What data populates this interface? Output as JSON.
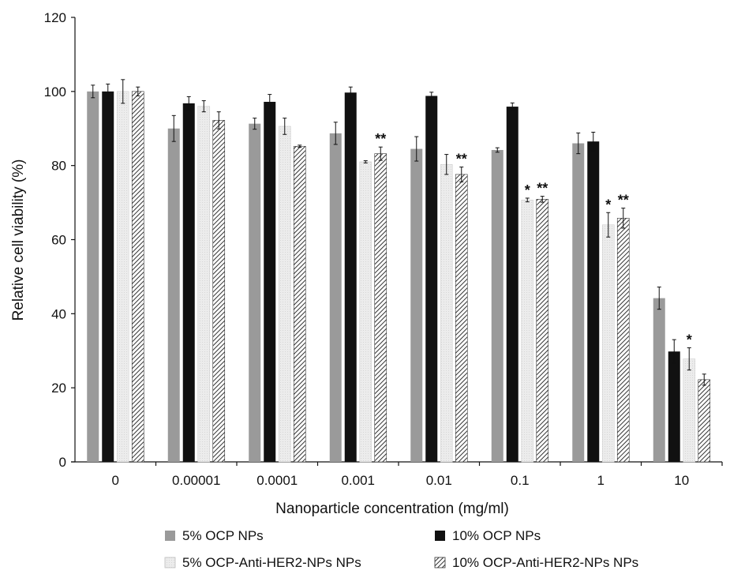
{
  "chart_data": {
    "type": "bar",
    "xlabel": "Nanoparticle concentration (mg/ml)",
    "ylabel": "Relative cell viability (%)",
    "ylim": [
      0,
      120
    ],
    "yticks": [
      "0",
      "20",
      "40",
      "60",
      "80",
      "100",
      "120"
    ],
    "categories": [
      "0",
      "0.00001",
      "0.0001",
      "0.001",
      "0.01",
      "0.1",
      "1",
      "10"
    ],
    "legend_position": "bottom",
    "series": [
      {
        "name": "5% OCP NPs",
        "color": "#9a9a9a",
        "pattern": "solid",
        "values": [
          100,
          90,
          91.3,
          88.7,
          84.5,
          84.2,
          86,
          44.2
        ],
        "errors": [
          1.7,
          3.5,
          1.5,
          3,
          3.3,
          0.6,
          2.8,
          3
        ],
        "significance": [
          "",
          "",
          "",
          "",
          "",
          "",
          "",
          ""
        ]
      },
      {
        "name": "10% OCP NPs",
        "color": "#111111",
        "pattern": "solid",
        "values": [
          100,
          96.8,
          97.2,
          99.7,
          98.8,
          95.9,
          86.5,
          29.8
        ],
        "errors": [
          2,
          1.8,
          2,
          1.5,
          1,
          1,
          2.5,
          3.2
        ],
        "significance": [
          "",
          "",
          "",
          "",
          "",
          "",
          "",
          ""
        ]
      },
      {
        "name": "5% OCP-Anti-HER2-NPs NPs",
        "color": "#ececec",
        "pattern": "dots",
        "values": [
          100,
          96,
          90.6,
          81,
          80.3,
          70.7,
          64,
          27.8
        ],
        "errors": [
          3.2,
          1.5,
          2.2,
          0.3,
          2.7,
          0.5,
          3.3,
          3
        ],
        "significance": [
          "",
          "",
          "",
          "",
          "",
          "*",
          "*",
          "*"
        ]
      },
      {
        "name": "10% OCP-Anti-HER2-NPs NPs",
        "color": "#555555",
        "pattern": "hatch",
        "values": [
          100,
          92.2,
          85.2,
          83.2,
          77.6,
          70.9,
          65.8,
          22.2
        ],
        "errors": [
          1.2,
          2.3,
          0.3,
          1.8,
          2,
          0.8,
          2.7,
          1.5
        ],
        "significance": [
          "",
          "",
          "",
          "**",
          "**",
          "**",
          "**",
          ""
        ]
      }
    ]
  }
}
